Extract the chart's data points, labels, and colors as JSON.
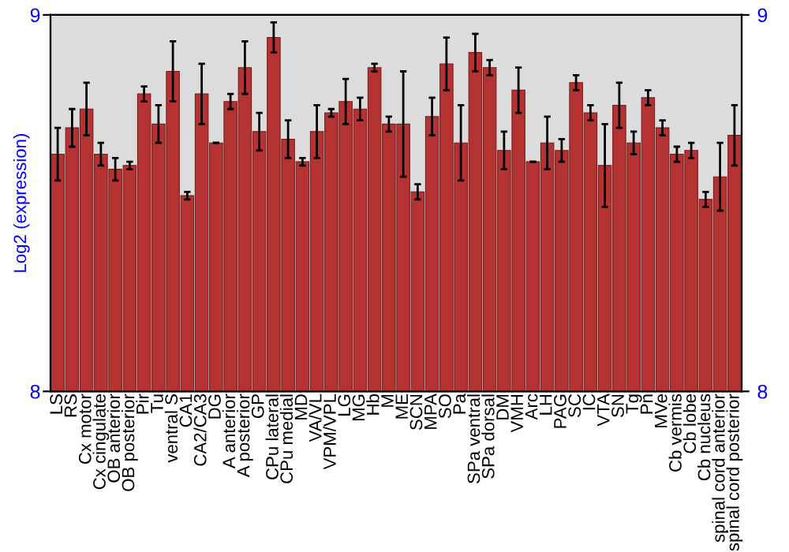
{
  "chart_data": {
    "type": "bar",
    "ylabel": "Log2 (expression)",
    "categories": [
      "LS",
      "RS",
      "Cx motor",
      "Cx cingulate",
      "OB anterior",
      "OB posterior",
      "Pir",
      "Tu",
      "ventral S",
      "CA1",
      "CA2/CA3",
      "DG",
      "A anterior",
      "A posterior",
      "GP",
      "CPu lateral",
      "CPu medial",
      "MD",
      "VA/VL",
      "VPM/VPL",
      "LG",
      "MG",
      "Hb",
      "M",
      "ME",
      "SCN",
      "MPA",
      "SO",
      "Pa",
      "SPa ventral",
      "SPa dorsal",
      "DM",
      "VMH",
      "Arc",
      "LH",
      "PAG",
      "SC",
      "IC",
      "VTA",
      "SN",
      "Tg",
      "Pn",
      "MVe",
      "Cb vermis",
      "Cb lobe",
      "Cb nucleus",
      "spinal cord anterior",
      "spinal cord posterior"
    ],
    "values": [
      8.63,
      8.7,
      8.75,
      8.63,
      8.59,
      8.6,
      8.79,
      8.71,
      8.85,
      8.52,
      8.79,
      8.66,
      8.77,
      8.86,
      8.69,
      8.94,
      8.67,
      8.61,
      8.69,
      8.74,
      8.77,
      8.75,
      8.86,
      8.71,
      8.71,
      8.53,
      8.73,
      8.87,
      8.66,
      8.9,
      8.86,
      8.64,
      8.8,
      8.61,
      8.66,
      8.64,
      8.82,
      8.74,
      8.6,
      8.76,
      8.66,
      8.78,
      8.7,
      8.63,
      8.64,
      8.51,
      8.57,
      8.68
    ],
    "errors": [
      0.07,
      0.05,
      0.07,
      0.03,
      0.03,
      0.01,
      0.02,
      0.05,
      0.08,
      0.01,
      0.08,
      null,
      0.02,
      0.07,
      0.05,
      0.04,
      0.05,
      0.01,
      0.07,
      0.01,
      0.06,
      0.03,
      0.01,
      0.02,
      0.14,
      0.02,
      0.05,
      0.07,
      0.1,
      0.05,
      0.02,
      0.05,
      0.06,
      null,
      0.07,
      0.03,
      0.02,
      0.02,
      0.11,
      0.06,
      0.03,
      0.02,
      0.02,
      0.02,
      0.02,
      0.02,
      0.09,
      0.08
    ],
    "color": "#b53232",
    "ylim": [
      8,
      9
    ],
    "yticks": [
      8,
      9
    ],
    "y2lim": [
      8,
      9
    ],
    "y2ticks": [
      8,
      9
    ],
    "grid": false
  }
}
